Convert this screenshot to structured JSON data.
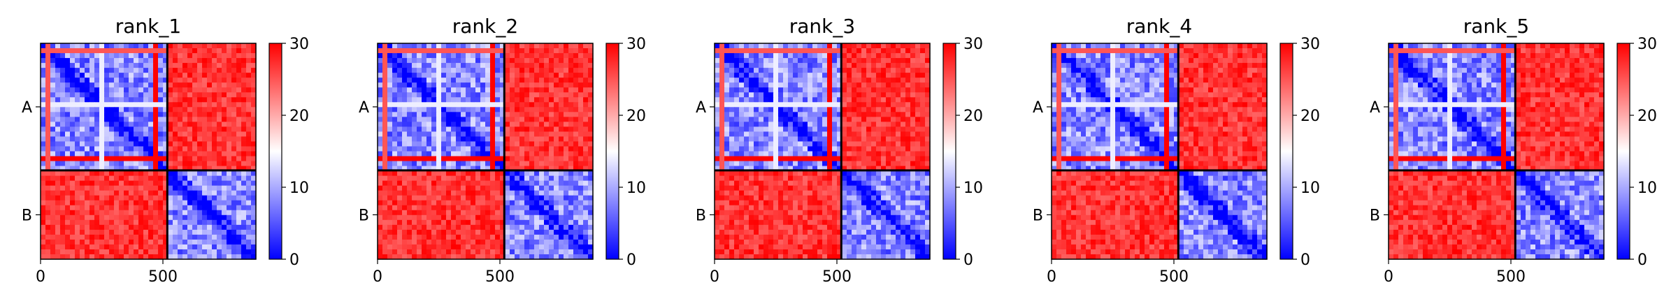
{
  "chart_data": [
    {
      "type": "heatmap",
      "title": "rank_1",
      "x_ticks": [
        "0",
        "500"
      ],
      "y_ticks": [
        "A",
        "B"
      ],
      "xlim": [
        0,
        880
      ],
      "ylim": [
        880,
        0
      ],
      "chain_boundary": 518,
      "colorbar": {
        "min": 0,
        "max": 30,
        "ticks": [
          "0",
          "10",
          "20",
          "30"
        ],
        "colormap": "bwr"
      },
      "block_values": {
        "A-A": 8,
        "A-B": 30,
        "B-A": 30,
        "B-B": 8
      }
    },
    {
      "type": "heatmap",
      "title": "rank_2",
      "x_ticks": [
        "0",
        "500"
      ],
      "y_ticks": [
        "A",
        "B"
      ],
      "xlim": [
        0,
        880
      ],
      "ylim": [
        880,
        0
      ],
      "chain_boundary": 518,
      "colorbar": {
        "min": 0,
        "max": 30,
        "ticks": [
          "0",
          "10",
          "20",
          "30"
        ],
        "colormap": "bwr"
      },
      "block_values": {
        "A-A": 8,
        "A-B": 30,
        "B-A": 30,
        "B-B": 8
      }
    },
    {
      "type": "heatmap",
      "title": "rank_3",
      "x_ticks": [
        "0",
        "500"
      ],
      "y_ticks": [
        "A",
        "B"
      ],
      "xlim": [
        0,
        880
      ],
      "ylim": [
        880,
        0
      ],
      "chain_boundary": 518,
      "colorbar": {
        "min": 0,
        "max": 30,
        "ticks": [
          "0",
          "10",
          "20",
          "30"
        ],
        "colormap": "bwr"
      },
      "block_values": {
        "A-A": 8,
        "A-B": 30,
        "B-A": 30,
        "B-B": 8
      }
    },
    {
      "type": "heatmap",
      "title": "rank_4",
      "x_ticks": [
        "0",
        "500"
      ],
      "y_ticks": [
        "A",
        "B"
      ],
      "xlim": [
        0,
        880
      ],
      "ylim": [
        880,
        0
      ],
      "chain_boundary": 518,
      "colorbar": {
        "min": 0,
        "max": 30,
        "ticks": [
          "0",
          "10",
          "20",
          "30"
        ],
        "colormap": "bwr"
      },
      "block_values": {
        "A-A": 8,
        "A-B": 30,
        "B-A": 30,
        "B-B": 8
      }
    },
    {
      "type": "heatmap",
      "title": "rank_5",
      "x_ticks": [
        "0",
        "500"
      ],
      "y_ticks": [
        "A",
        "B"
      ],
      "xlim": [
        0,
        880
      ],
      "ylim": [
        880,
        0
      ],
      "chain_boundary": 518,
      "colorbar": {
        "min": 0,
        "max": 30,
        "ticks": [
          "0",
          "10",
          "20",
          "30"
        ],
        "colormap": "bwr"
      },
      "block_values": {
        "A-A": 8,
        "A-B": 30,
        "B-A": 30,
        "B-B": 8
      }
    }
  ]
}
